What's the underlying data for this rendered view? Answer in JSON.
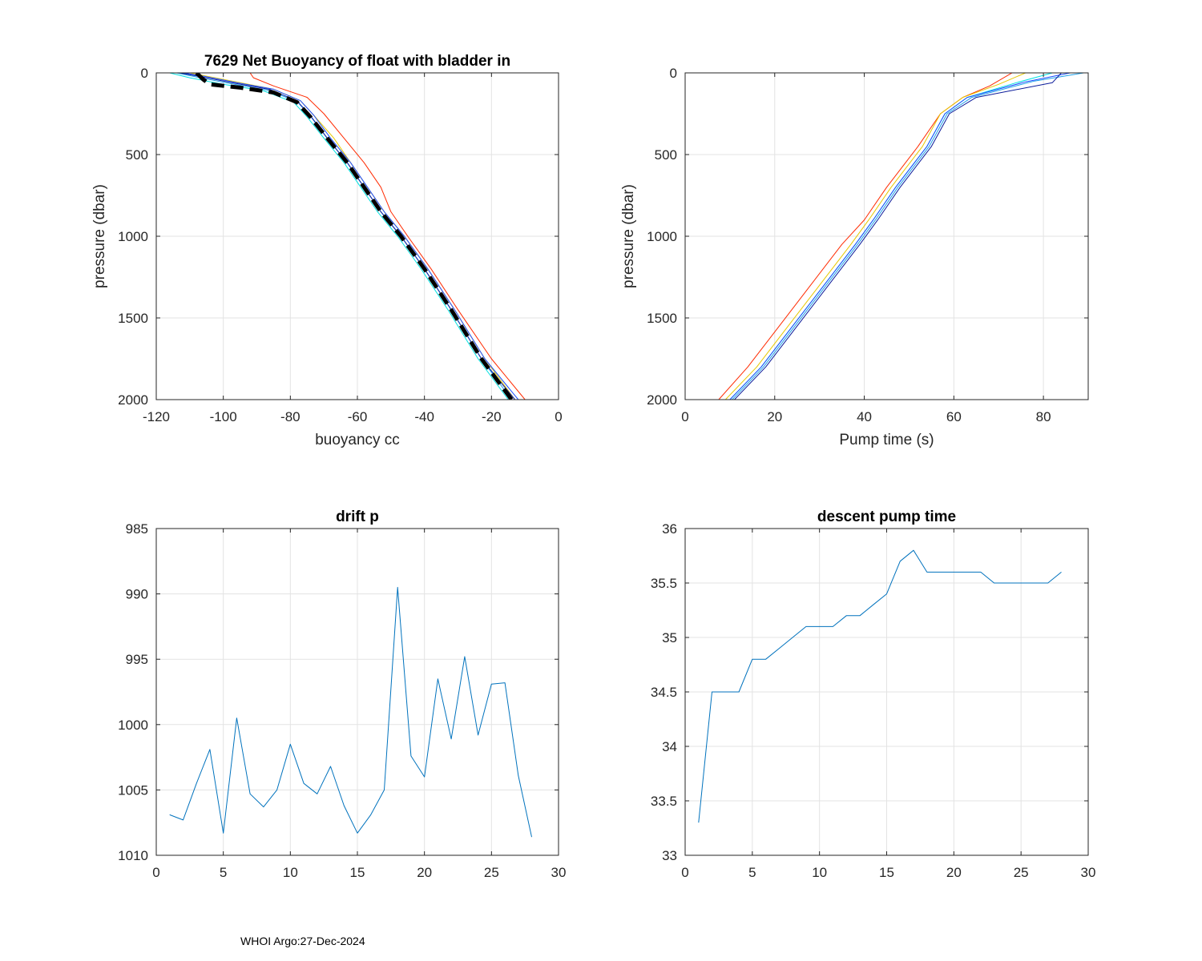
{
  "footer": "WHOI Argo:27-Dec-2024",
  "chart_data": [
    {
      "id": "buoyancy",
      "type": "line",
      "title": "7629 Net Buoyancy of float with bladder in",
      "xlabel": "buoyancy cc",
      "ylabel": "pressure (dbar)",
      "xlim": [
        -120,
        0
      ],
      "ylim": [
        0,
        2000
      ],
      "y_reversed": true,
      "grid": true,
      "xticks": [
        -120,
        -100,
        -80,
        -60,
        -40,
        -20,
        0
      ],
      "yticks": [
        0,
        500,
        1000,
        1500,
        2000
      ],
      "series": [
        {
          "name": "profile-red",
          "color": "#ff2a00",
          "width": 1,
          "x": [
            -92,
            -91,
            -85,
            -75,
            -70,
            -64,
            -58,
            -53,
            -50,
            -45,
            -38,
            -30,
            -20,
            -10
          ],
          "y": [
            0,
            30,
            80,
            150,
            250,
            400,
            550,
            700,
            850,
            1000,
            1200,
            1450,
            1750,
            2000
          ]
        },
        {
          "name": "profile-yellow",
          "color": "#e6c800",
          "width": 1,
          "x": [
            -110,
            -105,
            -95,
            -85,
            -77,
            -73,
            -67,
            -62,
            -57,
            -52,
            -46,
            -39,
            -31,
            -22,
            -13
          ],
          "y": [
            0,
            20,
            60,
            100,
            170,
            260,
            400,
            550,
            700,
            850,
            1000,
            1200,
            1450,
            1750,
            2000
          ]
        },
        {
          "name": "profile-cyan",
          "color": "#00e0e0",
          "width": 1,
          "x": [
            -116,
            -110,
            -100,
            -88,
            -79,
            -75,
            -70,
            -64,
            -59,
            -54,
            -48,
            -41,
            -33,
            -24,
            -15
          ],
          "y": [
            0,
            30,
            70,
            110,
            180,
            270,
            400,
            550,
            700,
            850,
            1000,
            1200,
            1450,
            1750,
            2000
          ]
        },
        {
          "name": "profile-lightblue",
          "color": "#1ea0e8",
          "width": 1,
          "x": [
            -114,
            -108,
            -98,
            -87,
            -78,
            -74,
            -69,
            -63,
            -58,
            -53,
            -47,
            -40,
            -32,
            -23,
            -14
          ],
          "y": [
            0,
            25,
            65,
            105,
            175,
            265,
            400,
            550,
            700,
            850,
            1000,
            1200,
            1450,
            1750,
            2000
          ]
        },
        {
          "name": "profile-blue",
          "color": "#1a4bff",
          "width": 1,
          "x": [
            -112,
            -106,
            -96,
            -85,
            -77,
            -73,
            -68,
            -62,
            -57,
            -52,
            -46,
            -39,
            -31,
            -22,
            -12
          ],
          "y": [
            0,
            20,
            60,
            100,
            170,
            260,
            400,
            550,
            700,
            850,
            1000,
            1200,
            1450,
            1750,
            2000
          ]
        },
        {
          "name": "profile-darkblue",
          "color": "#0a1a9a",
          "width": 1,
          "x": [
            -113,
            -107,
            -97,
            -86,
            -78,
            -74,
            -69,
            -63,
            -58,
            -53,
            -47,
            -40,
            -32,
            -23,
            -13
          ],
          "y": [
            0,
            22,
            62,
            102,
            172,
            262,
            400,
            550,
            700,
            850,
            1000,
            1200,
            1450,
            1750,
            2000
          ]
        },
        {
          "name": "mean-dashed",
          "color": "#000000",
          "width": 5,
          "dashed": true,
          "x": [
            -108,
            -106,
            -104,
            -95,
            -85,
            -78,
            -74,
            -69,
            -63,
            -58,
            -53,
            -47,
            -40,
            -32,
            -23,
            -14
          ],
          "y": [
            0,
            40,
            70,
            90,
            120,
            180,
            270,
            400,
            550,
            700,
            850,
            1000,
            1200,
            1450,
            1750,
            2000
          ]
        }
      ]
    },
    {
      "id": "pumptime",
      "type": "line",
      "title": "",
      "xlabel": "Pump time (s)",
      "ylabel": "pressure (dbar)",
      "xlim": [
        0,
        90
      ],
      "ylim": [
        0,
        2000
      ],
      "y_reversed": true,
      "grid": true,
      "xticks": [
        0,
        20,
        40,
        60,
        80
      ],
      "yticks": [
        0,
        500,
        1000,
        1500,
        2000
      ],
      "series": [
        {
          "name": "profile-red",
          "color": "#ff2a00",
          "width": 1,
          "x": [
            7.5,
            14,
            21,
            28,
            35,
            40,
            45,
            52,
            57,
            62,
            68,
            73
          ],
          "y": [
            2000,
            1800,
            1550,
            1300,
            1050,
            900,
            700,
            450,
            250,
            150,
            80,
            0
          ]
        },
        {
          "name": "profile-yellow",
          "color": "#e6c800",
          "width": 1,
          "x": [
            9,
            16,
            23,
            30,
            37,
            41,
            46,
            53,
            57,
            62,
            70,
            76
          ],
          "y": [
            2000,
            1800,
            1550,
            1300,
            1050,
            900,
            700,
            450,
            250,
            150,
            70,
            0
          ]
        },
        {
          "name": "profile-cyan",
          "color": "#00e0e0",
          "width": 1,
          "x": [
            10,
            17,
            24,
            31,
            38,
            42,
            47,
            54,
            58,
            63,
            74,
            82
          ],
          "y": [
            2000,
            1800,
            1550,
            1300,
            1050,
            900,
            700,
            450,
            250,
            150,
            60,
            0
          ]
        },
        {
          "name": "profile-lightblue",
          "color": "#1ea0e8",
          "width": 1,
          "x": [
            10.5,
            17.5,
            24.5,
            31.5,
            38.5,
            42.5,
            47.5,
            54.5,
            58.5,
            64,
            78,
            89
          ],
          "y": [
            2000,
            1800,
            1550,
            1300,
            1050,
            900,
            700,
            450,
            250,
            150,
            50,
            0
          ]
        },
        {
          "name": "profile-blue",
          "color": "#1a4bff",
          "width": 1,
          "x": [
            10,
            17,
            24,
            31,
            38,
            42,
            47,
            54,
            58,
            63,
            76,
            86
          ],
          "y": [
            2000,
            1800,
            1550,
            1300,
            1050,
            900,
            700,
            450,
            250,
            150,
            55,
            0
          ]
        },
        {
          "name": "profile-darkblue",
          "color": "#0a1a9a",
          "width": 1,
          "x": [
            11,
            18,
            25,
            32,
            39,
            43,
            48,
            55,
            59,
            65,
            82,
            84
          ],
          "y": [
            2000,
            1800,
            1550,
            1300,
            1050,
            900,
            700,
            450,
            250,
            150,
            60,
            0
          ]
        }
      ]
    },
    {
      "id": "driftp",
      "type": "line",
      "title": "drift p",
      "xlabel": "",
      "ylabel": "",
      "xlim": [
        0,
        30
      ],
      "ylim": [
        985,
        1010
      ],
      "y_reversed": true,
      "grid": true,
      "xticks": [
        0,
        5,
        10,
        15,
        20,
        25,
        30
      ],
      "yticks": [
        985,
        990,
        995,
        1000,
        1005,
        1010
      ],
      "series": [
        {
          "name": "drift p",
          "color": "#0072bd",
          "width": 1,
          "x": [
            1,
            2,
            3,
            4,
            5,
            6,
            7,
            8,
            9,
            10,
            11,
            12,
            13,
            14,
            15,
            16,
            17,
            18,
            19,
            20,
            21,
            22,
            23,
            24,
            25,
            26,
            27,
            28
          ],
          "y": [
            1006.9,
            1007.3,
            1004.5,
            1001.9,
            1008.3,
            999.5,
            1005.3,
            1006.3,
            1005.0,
            1001.5,
            1004.5,
            1005.3,
            1003.2,
            1006.2,
            1008.3,
            1006.9,
            1005.0,
            989.5,
            1002.4,
            1004.0,
            996.5,
            1001.1,
            994.8,
            1000.8,
            996.9,
            996.8,
            1003.9,
            1008.6
          ]
        }
      ]
    },
    {
      "id": "descentpump",
      "type": "line",
      "title": "descent pump time",
      "xlabel": "",
      "ylabel": "",
      "xlim": [
        0,
        30
      ],
      "ylim": [
        33,
        36
      ],
      "y_reversed": false,
      "grid": true,
      "xticks": [
        0,
        5,
        10,
        15,
        20,
        25,
        30
      ],
      "yticks": [
        33,
        33.5,
        34,
        34.5,
        35,
        35.5,
        36
      ],
      "series": [
        {
          "name": "descent pump time",
          "color": "#0072bd",
          "width": 1,
          "x": [
            1,
            2,
            3,
            4,
            5,
            6,
            7,
            8,
            9,
            10,
            11,
            12,
            13,
            14,
            15,
            16,
            17,
            18,
            19,
            20,
            21,
            22,
            23,
            24,
            25,
            26,
            27,
            28
          ],
          "y": [
            33.3,
            34.5,
            34.5,
            34.5,
            34.8,
            34.8,
            34.9,
            35.0,
            35.1,
            35.1,
            35.1,
            35.2,
            35.2,
            35.3,
            35.4,
            35.7,
            35.8,
            35.6,
            35.6,
            35.6,
            35.6,
            35.6,
            35.5,
            35.5,
            35.5,
            35.5,
            35.5,
            35.6
          ]
        }
      ]
    }
  ]
}
